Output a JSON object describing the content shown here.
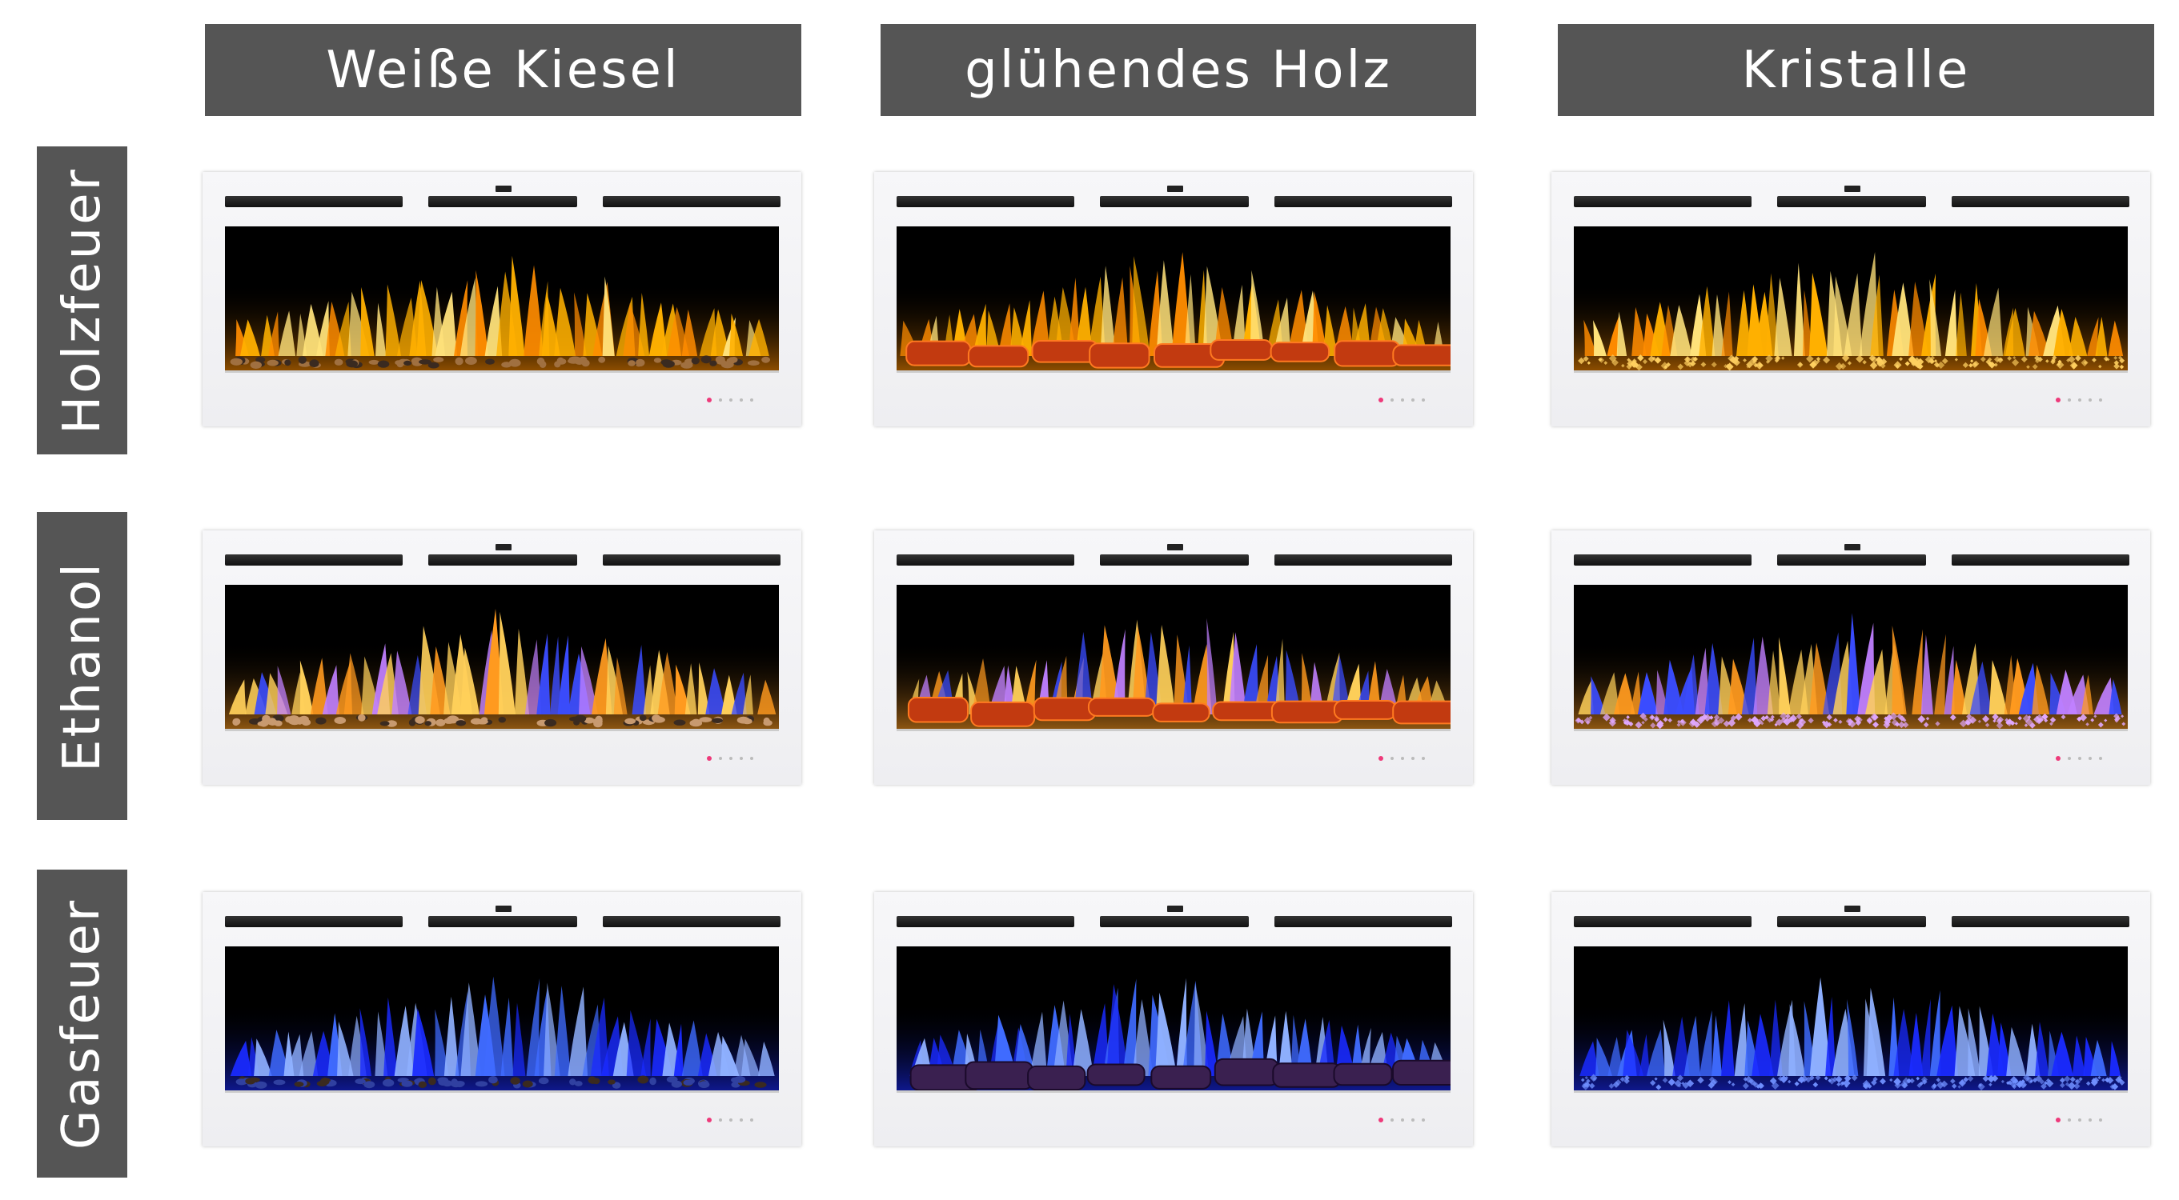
{
  "columns": [
    {
      "label": "Weiße Kiesel",
      "bed": "pebbles"
    },
    {
      "label": "glühendes Holz",
      "bed": "logs"
    },
    {
      "label": "Kristalle",
      "bed": "crystals"
    }
  ],
  "rows": [
    {
      "label": "Holzfeuer",
      "flame": "wood"
    },
    {
      "label": "Ethanol",
      "flame": "ethanol"
    },
    {
      "label": "Gasfeuer",
      "flame": "gas"
    }
  ],
  "colors": {
    "header_bg": "#555555",
    "header_text": "#ffffff",
    "frame": "#f3f3f5",
    "firebox": "#000000",
    "indicator_on": "#ee3a7a",
    "wood_flame": [
      "#ff8c00",
      "#ffb000",
      "#ffe27a"
    ],
    "ethanol_flame": [
      "#ff9a1f",
      "#ffd05a",
      "#3a4cff",
      "#c080ff"
    ],
    "gas_flame": [
      "#1a2bff",
      "#3f6bff",
      "#8fb0ff"
    ]
  }
}
